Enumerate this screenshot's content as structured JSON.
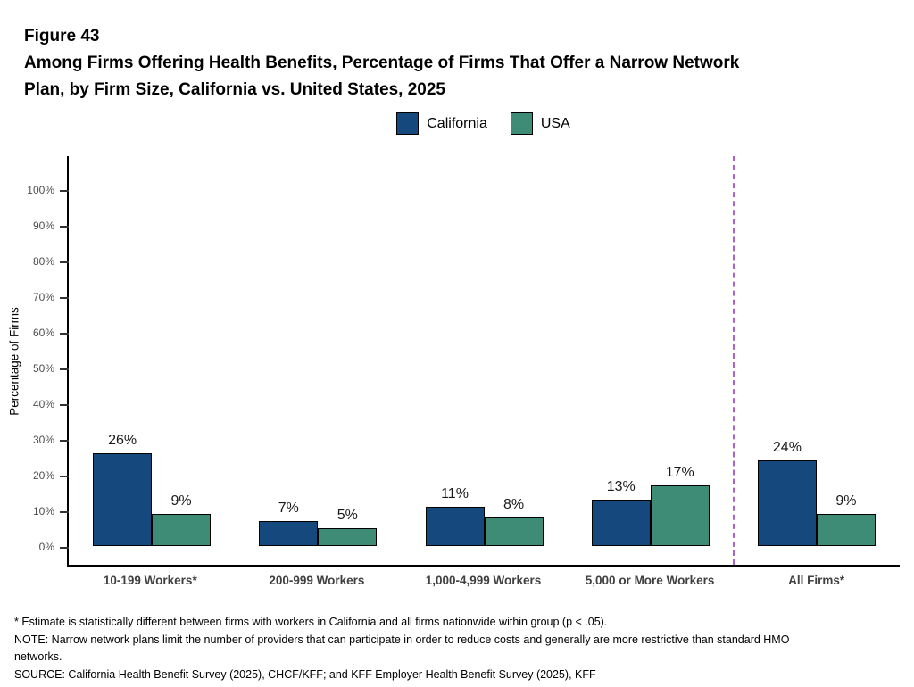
{
  "figure": {
    "label": "Figure 43",
    "title_line1": "Among Firms Offering Health Benefits, Percentage of Firms That Offer a Narrow Network",
    "title_line2": "Plan, by Firm Size, California vs. United States, 2025"
  },
  "chart_data": {
    "type": "bar",
    "title": "Among Firms Offering Health Benefits, Percentage of Firms That Offer a Narrow Network Plan, by Firm Size, California vs. United States, 2025",
    "categories": [
      "10-199 Workers*",
      "200-999 Workers",
      "1,000-4,999 Workers",
      "5,000 or More Workers",
      "All Firms*"
    ],
    "series": [
      {
        "name": "California",
        "color": "#15497E",
        "values": [
          26,
          7,
          11,
          13,
          24
        ]
      },
      {
        "name": "USA",
        "color": "#3F8C76",
        "values": [
          9,
          5,
          8,
          17,
          9
        ]
      }
    ],
    "value_suffix": "%",
    "ylabel": "Percentage of Firms",
    "xlabel": "",
    "ylim": [
      0,
      100
    ],
    "ytick_labels": [
      "0%",
      "10%",
      "20%",
      "30%",
      "40%",
      "50%",
      "60%",
      "70%",
      "80%",
      "90%",
      "100%"
    ],
    "grid": false,
    "legend_position": "top-center",
    "separator": {
      "after_category_index": 3,
      "style": "dashed",
      "color": "#A864C8"
    }
  },
  "footnotes": [
    "* Estimate is statistically different between firms with workers in California and all firms nationwide within group (p < .05).",
    "NOTE: Narrow network plans limit the number of providers that can participate in order to reduce costs and generally are more restrictive than standard HMO networks.",
    "SOURCE: California Health Benefit Survey (2025), CHCF/KFF; and KFF Employer Health Benefit Survey (2025), KFF"
  ]
}
